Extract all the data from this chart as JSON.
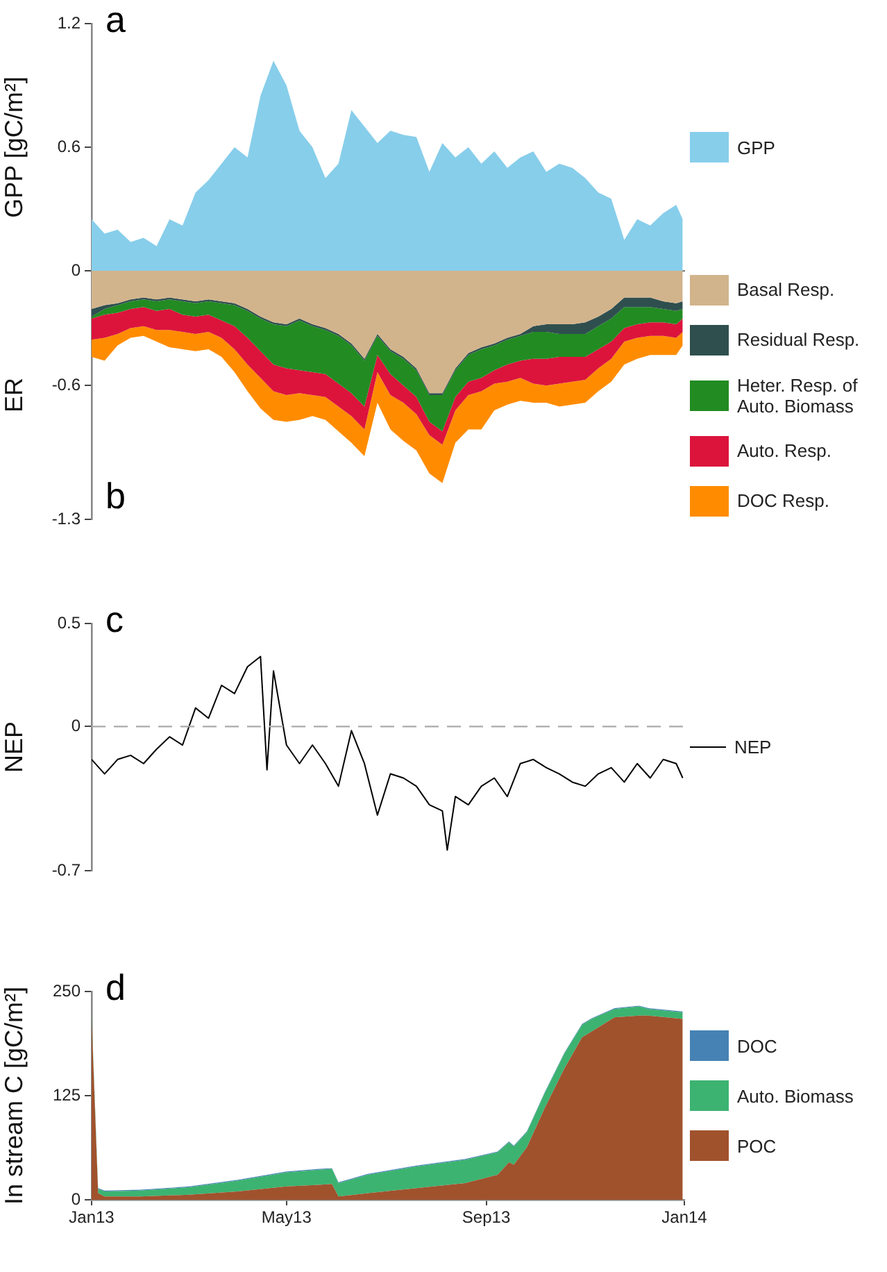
{
  "chart_data": [
    {
      "type": "area",
      "ylabel": "GPP [gC/m²]",
      "annotations": [
        "a"
      ],
      "x": [
        "2013-01-01",
        "2013-01-09",
        "2013-01-17",
        "2013-01-25",
        "2013-02-02",
        "2013-02-10",
        "2013-02-18",
        "2013-02-26",
        "2013-03-06",
        "2013-03-14",
        "2013-03-22",
        "2013-03-30",
        "2013-04-07",
        "2013-04-15",
        "2013-04-23",
        "2013-05-01",
        "2013-05-09",
        "2013-05-17",
        "2013-05-25",
        "2013-06-02",
        "2013-06-10",
        "2013-06-18",
        "2013-06-26",
        "2013-07-04",
        "2013-07-12",
        "2013-07-20",
        "2013-07-28",
        "2013-08-05",
        "2013-08-13",
        "2013-08-21",
        "2013-08-29",
        "2013-09-06",
        "2013-09-14",
        "2013-09-22",
        "2013-09-30",
        "2013-10-08",
        "2013-10-16",
        "2013-10-24",
        "2013-11-01",
        "2013-11-09",
        "2013-11-17",
        "2013-11-25",
        "2013-12-03",
        "2013-12-11",
        "2013-12-19",
        "2013-12-27",
        "2013-12-31"
      ],
      "series": [
        {
          "name": "GPP",
          "color": "#87ceeb",
          "values": [
            0.25,
            0.18,
            0.2,
            0.14,
            0.16,
            0.12,
            0.25,
            0.22,
            0.38,
            0.44,
            0.52,
            0.6,
            0.55,
            0.85,
            1.02,
            0.9,
            0.68,
            0.6,
            0.45,
            0.52,
            0.78,
            0.7,
            0.62,
            0.68,
            0.66,
            0.65,
            0.48,
            0.62,
            0.55,
            0.6,
            0.52,
            0.58,
            0.5,
            0.55,
            0.58,
            0.48,
            0.52,
            0.5,
            0.45,
            0.38,
            0.35,
            0.15,
            0.25,
            0.22,
            0.28,
            0.32,
            0.25
          ]
        }
      ],
      "xlim": [
        "2013-01-01",
        "2014-01-01"
      ],
      "xticks": [
        {
          "value": "2013-05-01",
          "label": null
        },
        {
          "value": "2013-09-01",
          "label": null
        }
      ],
      "ylim": [
        0,
        1.2
      ],
      "yticks": [
        0,
        0.6,
        1.2
      ],
      "tick_labels": "y",
      "legend": "right"
    },
    {
      "type": "area",
      "ylabel": "ER",
      "annotations": [
        "b"
      ],
      "stacked": true,
      "x": [
        "2013-01-01",
        "2013-01-09",
        "2013-01-17",
        "2013-01-25",
        "2013-02-02",
        "2013-02-10",
        "2013-02-18",
        "2013-02-26",
        "2013-03-06",
        "2013-03-14",
        "2013-03-22",
        "2013-03-30",
        "2013-04-07",
        "2013-04-15",
        "2013-04-23",
        "2013-05-01",
        "2013-05-09",
        "2013-05-17",
        "2013-05-25",
        "2013-06-02",
        "2013-06-10",
        "2013-06-18",
        "2013-06-26",
        "2013-07-04",
        "2013-07-12",
        "2013-07-20",
        "2013-07-28",
        "2013-08-05",
        "2013-08-13",
        "2013-08-21",
        "2013-08-29",
        "2013-09-06",
        "2013-09-14",
        "2013-09-22",
        "2013-09-30",
        "2013-10-08",
        "2013-10-16",
        "2013-10-24",
        "2013-11-01",
        "2013-11-09",
        "2013-11-17",
        "2013-11-25",
        "2013-12-03",
        "2013-12-11",
        "2013-12-19",
        "2013-12-27",
        "2013-12-31"
      ],
      "series": [
        {
          "name": "Basal Resp.",
          "color": "#d2b48c",
          "values": [
            -0.2,
            -0.18,
            -0.17,
            -0.15,
            -0.14,
            -0.15,
            -0.14,
            -0.15,
            -0.16,
            -0.15,
            -0.16,
            -0.17,
            -0.2,
            -0.24,
            -0.27,
            -0.28,
            -0.25,
            -0.28,
            -0.3,
            -0.33,
            -0.38,
            -0.46,
            -0.33,
            -0.41,
            -0.45,
            -0.51,
            -0.64,
            -0.64,
            -0.51,
            -0.43,
            -0.4,
            -0.38,
            -0.35,
            -0.33,
            -0.29,
            -0.28,
            -0.28,
            -0.28,
            -0.27,
            -0.24,
            -0.2,
            -0.14,
            -0.14,
            -0.14,
            -0.16,
            -0.17,
            -0.16
          ]
        },
        {
          "name": "Residual Resp.",
          "color": "#2f4f4f",
          "values": [
            -0.04,
            -0.02,
            -0.01,
            -0.01,
            -0.01,
            -0.01,
            -0.01,
            -0.01,
            -0.01,
            -0.01,
            -0.01,
            -0.01,
            -0.01,
            -0.01,
            -0.01,
            -0.01,
            -0.01,
            -0.01,
            -0.01,
            -0.01,
            -0.01,
            -0.01,
            -0.01,
            -0.01,
            -0.01,
            -0.01,
            -0.01,
            -0.01,
            -0.01,
            -0.01,
            -0.01,
            -0.01,
            -0.01,
            -0.01,
            -0.03,
            -0.04,
            -0.05,
            -0.05,
            -0.06,
            -0.05,
            -0.05,
            -0.05,
            -0.05,
            -0.05,
            -0.04,
            -0.04,
            -0.04
          ]
        },
        {
          "name": "Heter. Resp. of Auto. Biomass",
          "color": "#228b22",
          "values": [
            -0.01,
            -0.03,
            -0.04,
            -0.04,
            -0.04,
            -0.05,
            -0.05,
            -0.07,
            -0.07,
            -0.07,
            -0.09,
            -0.11,
            -0.14,
            -0.17,
            -0.21,
            -0.22,
            -0.26,
            -0.24,
            -0.23,
            -0.25,
            -0.25,
            -0.24,
            -0.1,
            -0.12,
            -0.14,
            -0.14,
            -0.14,
            -0.19,
            -0.14,
            -0.14,
            -0.15,
            -0.13,
            -0.13,
            -0.13,
            -0.14,
            -0.14,
            -0.12,
            -0.12,
            -0.12,
            -0.12,
            -0.12,
            -0.11,
            -0.09,
            -0.08,
            -0.07,
            -0.07,
            -0.05
          ]
        },
        {
          "name": "Auto. Resp.",
          "color": "#dc143c",
          "values": [
            -0.11,
            -0.12,
            -0.11,
            -0.1,
            -0.1,
            -0.1,
            -0.11,
            -0.09,
            -0.09,
            -0.09,
            -0.09,
            -0.12,
            -0.14,
            -0.14,
            -0.14,
            -0.14,
            -0.12,
            -0.12,
            -0.12,
            -0.12,
            -0.12,
            -0.12,
            -0.09,
            -0.11,
            -0.09,
            -0.09,
            -0.07,
            -0.07,
            -0.07,
            -0.07,
            -0.07,
            -0.07,
            -0.09,
            -0.09,
            -0.13,
            -0.14,
            -0.14,
            -0.13,
            -0.12,
            -0.1,
            -0.09,
            -0.07,
            -0.07,
            -0.07,
            -0.07,
            -0.07,
            -0.07
          ]
        },
        {
          "name": "DOC Resp.",
          "color": "#ff8c00",
          "values": [
            -0.09,
            -0.12,
            -0.06,
            -0.05,
            -0.05,
            -0.06,
            -0.09,
            -0.09,
            -0.09,
            -0.09,
            -0.1,
            -0.12,
            -0.14,
            -0.16,
            -0.15,
            -0.14,
            -0.14,
            -0.11,
            -0.12,
            -0.13,
            -0.14,
            -0.14,
            -0.16,
            -0.18,
            -0.2,
            -0.19,
            -0.2,
            -0.2,
            -0.17,
            -0.18,
            -0.2,
            -0.14,
            -0.12,
            -0.12,
            -0.1,
            -0.09,
            -0.12,
            -0.12,
            -0.12,
            -0.12,
            -0.12,
            -0.12,
            -0.11,
            -0.1,
            -0.1,
            -0.09,
            -0.07
          ]
        }
      ],
      "xlim": [
        "2013-01-01",
        "2014-01-01"
      ],
      "ylim": [
        -1.3,
        0
      ],
      "yticks": [
        -1.3,
        -0.6
      ],
      "tick_labels": "y",
      "legend": "right"
    },
    {
      "type": "line",
      "ylabel": "NEP",
      "annotations": [
        "c"
      ],
      "x": [
        "2013-01-01",
        "2013-01-09",
        "2013-01-17",
        "2013-01-25",
        "2013-02-02",
        "2013-02-10",
        "2013-02-18",
        "2013-02-26",
        "2013-03-06",
        "2013-03-14",
        "2013-03-22",
        "2013-03-30",
        "2013-04-07",
        "2013-04-15",
        "2013-04-19",
        "2013-04-23",
        "2013-05-01",
        "2013-05-09",
        "2013-05-17",
        "2013-05-25",
        "2013-06-02",
        "2013-06-10",
        "2013-06-18",
        "2013-06-26",
        "2013-07-04",
        "2013-07-12",
        "2013-07-20",
        "2013-07-28",
        "2013-08-05",
        "2013-08-08",
        "2013-08-13",
        "2013-08-21",
        "2013-08-29",
        "2013-09-06",
        "2013-09-14",
        "2013-09-22",
        "2013-09-30",
        "2013-10-08",
        "2013-10-16",
        "2013-10-24",
        "2013-11-01",
        "2013-11-09",
        "2013-11-17",
        "2013-11-25",
        "2013-12-03",
        "2013-12-11",
        "2013-12-19",
        "2013-12-27",
        "2013-12-31"
      ],
      "series": [
        {
          "name": "NEP",
          "color": "#000000",
          "values": [
            -0.16,
            -0.23,
            -0.16,
            -0.14,
            -0.18,
            -0.11,
            -0.05,
            -0.09,
            0.09,
            0.04,
            0.2,
            0.16,
            0.29,
            0.34,
            -0.21,
            0.27,
            -0.09,
            -0.18,
            -0.09,
            -0.18,
            -0.29,
            -0.02,
            -0.18,
            -0.43,
            -0.23,
            -0.25,
            -0.29,
            -0.38,
            -0.41,
            -0.6,
            -0.34,
            -0.38,
            -0.29,
            -0.25,
            -0.34,
            -0.18,
            -0.16,
            -0.2,
            -0.23,
            -0.27,
            -0.29,
            -0.23,
            -0.2,
            -0.27,
            -0.18,
            -0.25,
            -0.16,
            -0.18,
            -0.25
          ]
        }
      ],
      "ref_lines": [
        {
          "axis": "y",
          "value": 0,
          "color": "#aaaaaa",
          "line_style": "dashed"
        }
      ],
      "xlim": [
        "2013-01-01",
        "2014-01-01"
      ],
      "ylim": [
        -0.7,
        0.5
      ],
      "yticks": [
        -0.7,
        0,
        0.5
      ],
      "tick_labels": "y",
      "legend": "right"
    },
    {
      "type": "area",
      "ylabel": "In stream C [gC/m²]",
      "annotations": [
        "d"
      ],
      "stacked": true,
      "x": [
        "2013-01-01",
        "2013-01-05",
        "2013-01-09",
        "2013-01-31",
        "2013-03-02",
        "2013-04-01",
        "2013-05-01",
        "2013-05-21",
        "2013-05-29",
        "2013-06-02",
        "2013-06-20",
        "2013-07-20",
        "2013-08-19",
        "2013-09-08",
        "2013-09-15",
        "2013-09-18",
        "2013-09-26",
        "2013-10-07",
        "2013-10-19",
        "2013-10-30",
        "2013-11-05",
        "2013-11-19",
        "2013-12-04",
        "2013-12-10",
        "2013-12-31"
      ],
      "series": [
        {
          "name": "POC",
          "color": "#a0522d",
          "values": [
            217,
            8,
            4,
            4,
            6,
            10,
            16,
            18,
            19,
            4,
            8,
            14,
            20,
            30,
            45,
            42,
            63,
            110,
            157,
            195,
            202,
            219,
            221,
            221,
            217
          ]
        },
        {
          "name": "Auto. Biomass",
          "color": "#3cb371",
          "values": [
            7,
            5,
            6,
            7,
            9,
            13,
            17,
            18,
            18,
            16,
            22,
            26,
            28,
            27,
            24,
            22,
            18,
            18,
            18,
            15,
            15,
            10,
            11,
            8,
            8
          ]
        },
        {
          "name": "DOC",
          "color": "#4682b4",
          "values": [
            1,
            1,
            1,
            1,
            1,
            1,
            1,
            1,
            1,
            1,
            1,
            1,
            1,
            1,
            1,
            1,
            1,
            1,
            1,
            1,
            1,
            1,
            1,
            1,
            1
          ]
        }
      ],
      "xlim": [
        "2013-01-01",
        "2014-01-01"
      ],
      "xticks": [
        {
          "value": "2013-01-01",
          "label": "Jan13"
        },
        {
          "value": "2013-05-01",
          "label": "May13"
        },
        {
          "value": "2013-09-01",
          "label": "Sep13"
        },
        {
          "value": "2014-01-01",
          "label": "Jan14"
        }
      ],
      "ylim": [
        0,
        250
      ],
      "yticks": [
        0,
        125,
        250
      ],
      "legend": "right"
    }
  ]
}
